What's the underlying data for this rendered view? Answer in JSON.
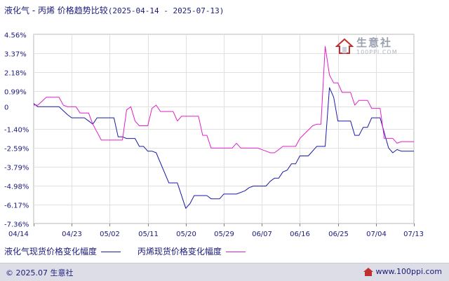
{
  "title": {
    "main": "液化气 - 丙烯 价格趋势比较",
    "date_range": "(2025-04-14 - 2025-07-13)"
  },
  "colors": {
    "series_lpg": "#1a1aa8",
    "series_propylene": "#e020c8",
    "grid": "#e0e0e0",
    "axis": "#808080",
    "text": "#1a1a7a"
  },
  "chart_data": {
    "type": "line",
    "x_type": "date",
    "x_range": [
      "2025-04-14",
      "2025-07-13"
    ],
    "ylim": [
      -7.36,
      4.56
    ],
    "grid": true,
    "legend_position": "bottom",
    "y_ticks": [
      4.56,
      3.37,
      2.18,
      0.99,
      0,
      -1.4,
      -2.59,
      -3.79,
      -4.98,
      -6.17,
      -7.36
    ],
    "y_tick_labels": [
      "4.56%",
      "3.37%",
      "2.18%",
      "0.99%",
      "0",
      "-1.40%",
      "-2.59%",
      "-3.79%",
      "-4.98%",
      "-6.17%",
      "-7.36%"
    ],
    "x_tick_labels": [
      "04/14",
      "04/23",
      "05/02",
      "05/11",
      "05/20",
      "05/29",
      "06/07",
      "06/16",
      "06/25",
      "07/04",
      "07/13"
    ],
    "series": [
      {
        "name": "液化气现货价格变化幅度",
        "color": "#1a1aa8",
        "points": [
          [
            "2025-04-14",
            0.2
          ],
          [
            "2025-04-15",
            0.0
          ],
          [
            "2025-04-17",
            0.0
          ],
          [
            "2025-04-20",
            0.0
          ],
          [
            "2025-04-22",
            -0.5
          ],
          [
            "2025-04-23",
            -0.7
          ],
          [
            "2025-04-26",
            -0.7
          ],
          [
            "2025-04-28",
            -1.1
          ],
          [
            "2025-04-29",
            -0.7
          ],
          [
            "2025-05-03",
            -0.7
          ],
          [
            "2025-05-04",
            -1.9
          ],
          [
            "2025-05-05",
            -1.9
          ],
          [
            "2025-05-06",
            -2.0
          ],
          [
            "2025-05-08",
            -2.0
          ],
          [
            "2025-05-09",
            -2.5
          ],
          [
            "2025-05-10",
            -2.5
          ],
          [
            "2025-05-11",
            -2.8
          ],
          [
            "2025-05-12",
            -2.8
          ],
          [
            "2025-05-13",
            -2.9
          ],
          [
            "2025-05-16",
            -4.8
          ],
          [
            "2025-05-17",
            -4.8
          ],
          [
            "2025-05-18",
            -4.8
          ],
          [
            "2025-05-20",
            -6.4
          ],
          [
            "2025-05-21",
            -6.1
          ],
          [
            "2025-05-22",
            -5.6
          ],
          [
            "2025-05-24",
            -5.6
          ],
          [
            "2025-05-25",
            -5.6
          ],
          [
            "2025-05-26",
            -5.8
          ],
          [
            "2025-05-28",
            -5.8
          ],
          [
            "2025-05-29",
            -5.5
          ],
          [
            "2025-06-01",
            -5.5
          ],
          [
            "2025-06-03",
            -5.3
          ],
          [
            "2025-06-04",
            -5.1
          ],
          [
            "2025-06-05",
            -5.0
          ],
          [
            "2025-06-07",
            -5.0
          ],
          [
            "2025-06-08",
            -5.0
          ],
          [
            "2025-06-09",
            -4.7
          ],
          [
            "2025-06-10",
            -4.5
          ],
          [
            "2025-06-11",
            -4.5
          ],
          [
            "2025-06-12",
            -4.1
          ],
          [
            "2025-06-13",
            -4.0
          ],
          [
            "2025-06-14",
            -3.6
          ],
          [
            "2025-06-15",
            -3.6
          ],
          [
            "2025-06-16",
            -3.1
          ],
          [
            "2025-06-18",
            -3.1
          ],
          [
            "2025-06-20",
            -2.5
          ],
          [
            "2025-06-22",
            -2.5
          ],
          [
            "2025-06-23",
            1.2
          ],
          [
            "2025-06-24",
            0.6
          ],
          [
            "2025-06-25",
            -0.9
          ],
          [
            "2025-06-26",
            -0.9
          ],
          [
            "2025-06-28",
            -0.9
          ],
          [
            "2025-06-29",
            -1.8
          ],
          [
            "2025-06-30",
            -1.8
          ],
          [
            "2025-07-01",
            -1.3
          ],
          [
            "2025-07-02",
            -1.3
          ],
          [
            "2025-07-03",
            -0.7
          ],
          [
            "2025-07-04",
            -0.7
          ],
          [
            "2025-07-05",
            -0.7
          ],
          [
            "2025-07-07",
            -2.6
          ],
          [
            "2025-07-08",
            -2.9
          ],
          [
            "2025-07-09",
            -2.7
          ],
          [
            "2025-07-10",
            -2.8
          ],
          [
            "2025-07-11",
            -2.8
          ],
          [
            "2025-07-12",
            -2.8
          ],
          [
            "2025-07-13",
            -2.8
          ]
        ]
      },
      {
        "name": "丙烯现货价格变化幅度",
        "color": "#e020c8",
        "points": [
          [
            "2025-04-14",
            0.1
          ],
          [
            "2025-04-15",
            0.1
          ],
          [
            "2025-04-17",
            0.6
          ],
          [
            "2025-04-19",
            0.6
          ],
          [
            "2025-04-20",
            0.6
          ],
          [
            "2025-04-21",
            0.1
          ],
          [
            "2025-04-22",
            0.0
          ],
          [
            "2025-04-24",
            0.0
          ],
          [
            "2025-04-25",
            -0.4
          ],
          [
            "2025-04-27",
            -0.4
          ],
          [
            "2025-04-28",
            -1.1
          ],
          [
            "2025-04-30",
            -2.1
          ],
          [
            "2025-05-03",
            -2.1
          ],
          [
            "2025-05-04",
            -2.1
          ],
          [
            "2025-05-05",
            -2.1
          ],
          [
            "2025-05-06",
            -0.2
          ],
          [
            "2025-05-07",
            0.0
          ],
          [
            "2025-05-08",
            -0.9
          ],
          [
            "2025-05-09",
            -1.2
          ],
          [
            "2025-05-10",
            -1.2
          ],
          [
            "2025-05-11",
            -1.2
          ],
          [
            "2025-05-12",
            -0.1
          ],
          [
            "2025-05-13",
            0.1
          ],
          [
            "2025-05-14",
            -0.3
          ],
          [
            "2025-05-17",
            -0.3
          ],
          [
            "2025-05-18",
            -0.9
          ],
          [
            "2025-05-19",
            -0.6
          ],
          [
            "2025-05-21",
            -0.6
          ],
          [
            "2025-05-23",
            -0.6
          ],
          [
            "2025-05-24",
            -1.8
          ],
          [
            "2025-05-25",
            -1.8
          ],
          [
            "2025-05-26",
            -2.6
          ],
          [
            "2025-05-27",
            -2.6
          ],
          [
            "2025-05-31",
            -2.6
          ],
          [
            "2025-06-01",
            -2.3
          ],
          [
            "2025-06-02",
            -2.6
          ],
          [
            "2025-06-03",
            -2.6
          ],
          [
            "2025-06-06",
            -2.6
          ],
          [
            "2025-06-08",
            -2.8
          ],
          [
            "2025-06-09",
            -2.9
          ],
          [
            "2025-06-10",
            -2.9
          ],
          [
            "2025-06-12",
            -2.5
          ],
          [
            "2025-06-15",
            -2.5
          ],
          [
            "2025-06-16",
            -2.0
          ],
          [
            "2025-06-19",
            -1.2
          ],
          [
            "2025-06-20",
            -1.1
          ],
          [
            "2025-06-21",
            -1.1
          ],
          [
            "2025-06-22",
            3.8
          ],
          [
            "2025-06-23",
            2.0
          ],
          [
            "2025-06-24",
            1.5
          ],
          [
            "2025-06-25",
            1.5
          ],
          [
            "2025-06-26",
            0.9
          ],
          [
            "2025-06-27",
            0.9
          ],
          [
            "2025-06-28",
            0.9
          ],
          [
            "2025-06-29",
            0.1
          ],
          [
            "2025-06-30",
            0.4
          ],
          [
            "2025-07-01",
            0.4
          ],
          [
            "2025-07-02",
            0.4
          ],
          [
            "2025-07-03",
            -0.1
          ],
          [
            "2025-07-04",
            -0.1
          ],
          [
            "2025-07-05",
            -0.1
          ],
          [
            "2025-07-06",
            -2.0
          ],
          [
            "2025-07-07",
            -2.0
          ],
          [
            "2025-07-08",
            -2.0
          ],
          [
            "2025-07-09",
            -2.3
          ],
          [
            "2025-07-10",
            -2.2
          ],
          [
            "2025-07-11",
            -2.2
          ],
          [
            "2025-07-12",
            -2.2
          ],
          [
            "2025-07-13",
            -2.2
          ]
        ]
      }
    ]
  },
  "legend": {
    "items": [
      {
        "label": "液化气现货价格变化幅度",
        "color": "#1a1aa8"
      },
      {
        "label": "丙烯现货价格变化幅度",
        "color": "#e020c8"
      }
    ]
  },
  "watermark": {
    "text": "生意社",
    "url": "100PPI.COM",
    "icon": "house-logo-icon"
  },
  "footer": {
    "copyright": "© 2025.07 生意社",
    "site": "www.100ppi.com",
    "icon": "ppi-logo-icon"
  }
}
